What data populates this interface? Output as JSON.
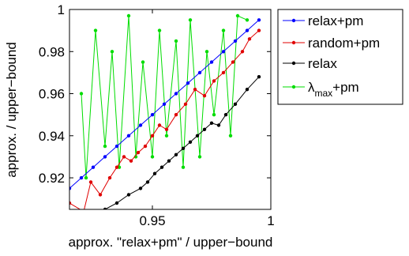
{
  "chart_data": {
    "type": "line",
    "xlabel": "approx. \"relax+pm\" / upper−bound",
    "ylabel": "approx. / upper−bound",
    "xlim": [
      0.915,
      1.0
    ],
    "ylim": [
      0.905,
      1.0
    ],
    "xticks": [
      0.95,
      1.0
    ],
    "xtick_labels": [
      "0.95",
      "1"
    ],
    "yticks": [
      0.92,
      0.94,
      0.96,
      0.98,
      1.0
    ],
    "ytick_labels": [
      "0.92",
      "0.94",
      "0.96",
      "0.98",
      "1"
    ],
    "grid": false,
    "legend_position": "outside-top-right",
    "series": [
      {
        "name": "relax+pm",
        "color": "#0000ff",
        "x": [
          0.915,
          0.92,
          0.925,
          0.93,
          0.935,
          0.94,
          0.945,
          0.95,
          0.955,
          0.96,
          0.965,
          0.97,
          0.975,
          0.98,
          0.985,
          0.99,
          0.995
        ],
        "y": [
          0.915,
          0.92,
          0.925,
          0.93,
          0.935,
          0.94,
          0.945,
          0.95,
          0.955,
          0.96,
          0.965,
          0.97,
          0.975,
          0.98,
          0.985,
          0.99,
          0.995
        ]
      },
      {
        "name": "random+pm",
        "color": "#e00000",
        "x": [
          0.915,
          0.921,
          0.924,
          0.928,
          0.932,
          0.935,
          0.938,
          0.941,
          0.944,
          0.947,
          0.95,
          0.953,
          0.956,
          0.96,
          0.964,
          0.968,
          0.972,
          0.976,
          0.98,
          0.984,
          0.988,
          0.991,
          0.995
        ],
        "y": [
          0.908,
          0.904,
          0.918,
          0.912,
          0.92,
          0.925,
          0.93,
          0.928,
          0.932,
          0.935,
          0.94,
          0.945,
          0.943,
          0.95,
          0.955,
          0.962,
          0.959,
          0.966,
          0.97,
          0.975,
          0.98,
          0.986,
          0.99
        ]
      },
      {
        "name": "relax",
        "color": "#000000",
        "x": [
          0.93,
          0.935,
          0.94,
          0.945,
          0.948,
          0.951,
          0.954,
          0.957,
          0.96,
          0.963,
          0.966,
          0.969,
          0.972,
          0.975,
          0.978,
          0.981,
          0.985,
          0.99,
          0.995
        ],
        "y": [
          0.905,
          0.908,
          0.912,
          0.915,
          0.918,
          0.922,
          0.925,
          0.928,
          0.931,
          0.934,
          0.937,
          0.94,
          0.943,
          0.946,
          0.945,
          0.95,
          0.955,
          0.962,
          0.968
        ]
      },
      {
        "name": "λ_max+pm",
        "color": "#00dd00",
        "x": [
          0.92,
          0.922,
          0.926,
          0.93,
          0.933,
          0.936,
          0.94,
          0.943,
          0.946,
          0.95,
          0.953,
          0.956,
          0.96,
          0.963,
          0.966,
          0.97,
          0.973,
          0.976,
          0.98,
          0.983,
          0.986,
          0.99
        ],
        "y": [
          0.96,
          0.92,
          0.99,
          0.935,
          0.98,
          0.925,
          0.997,
          0.93,
          0.975,
          0.93,
          0.99,
          0.94,
          0.985,
          0.925,
          0.995,
          0.93,
          0.98,
          0.95,
          0.99,
          0.94,
          0.997,
          0.995
        ]
      }
    ],
    "legend": [
      {
        "text": "relax+pm",
        "sub": "",
        "suffix": ""
      },
      {
        "text": "random+pm",
        "sub": "",
        "suffix": ""
      },
      {
        "text": "relax",
        "sub": "",
        "suffix": ""
      },
      {
        "text": "λ",
        "sub": "max",
        "suffix": "+pm"
      }
    ]
  }
}
